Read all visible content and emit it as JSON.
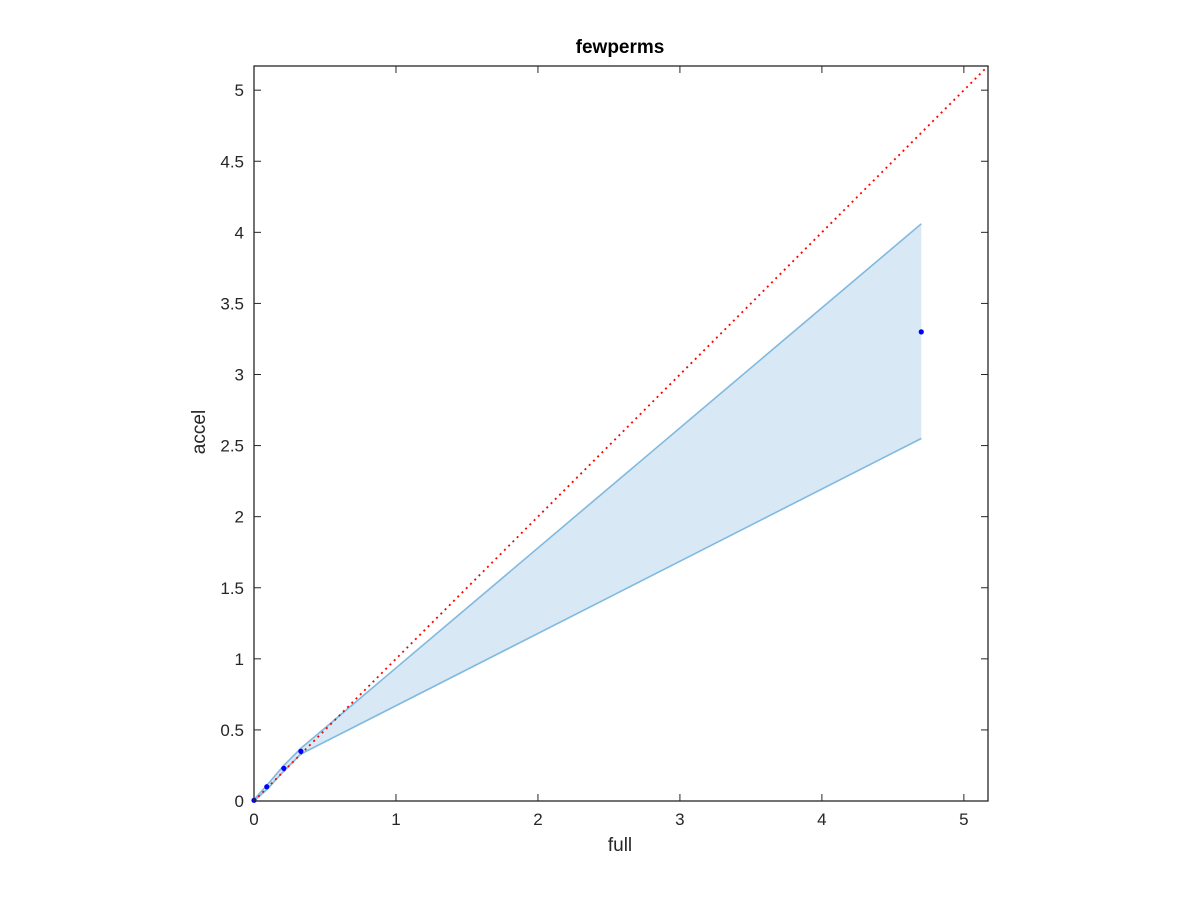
{
  "chart_data": {
    "type": "area",
    "title": "fewperms",
    "xlabel": "full",
    "ylabel": "accel",
    "xlim": [
      0,
      5.17
    ],
    "ylim": [
      0,
      5.17
    ],
    "xticks": [
      0,
      1,
      2,
      3,
      4,
      5
    ],
    "yticks": [
      0,
      0.5,
      1,
      1.5,
      2,
      2.5,
      3,
      3.5,
      4,
      4.5,
      5
    ],
    "grid": false,
    "legend": "none",
    "colors": {
      "band_fill": "#d8e8f4",
      "band_edge": "#80b9e0",
      "points": "#0000ff",
      "reference_line": "#ff0000",
      "axes": "#262626"
    },
    "series": [
      {
        "type": "band",
        "x": [
          0,
          0.09,
          0.21,
          0.33,
          4.7
        ],
        "upper": [
          0.01,
          0.11,
          0.25,
          0.37,
          4.06
        ],
        "lower": [
          0,
          0.08,
          0.21,
          0.33,
          2.55
        ]
      },
      {
        "type": "scatter",
        "x": [
          0,
          0.09,
          0.21,
          0.33,
          4.7
        ],
        "y": [
          0.005,
          0.1,
          0.23,
          0.35,
          3.3
        ]
      },
      {
        "type": "reference-line",
        "style": "dotted",
        "x": [
          0,
          5.17
        ],
        "y": [
          0,
          5.17
        ]
      }
    ]
  }
}
